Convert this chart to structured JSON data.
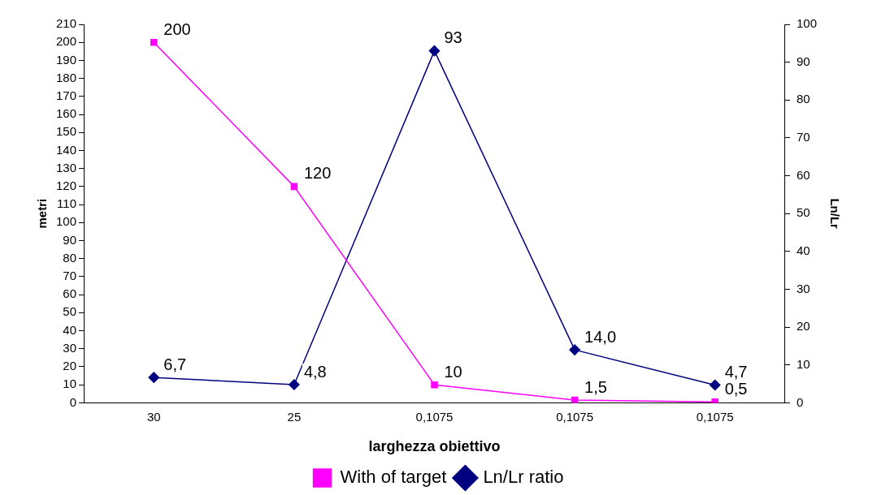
{
  "chart_data": {
    "type": "line",
    "xlabel": "larghezza obiettivo",
    "ylabel": "metri",
    "y2label": "Ln/Lr",
    "categories": [
      "30",
      "25",
      "0,1075",
      "0,1075",
      "0,1075"
    ],
    "series": [
      {
        "name": "With of target",
        "color": "#ff00ff",
        "marker": "square",
        "values": [
          200,
          120,
          10,
          1.5,
          0.5
        ],
        "value_labels": [
          "200",
          "120",
          "10",
          "1,5",
          "0,5"
        ]
      },
      {
        "name": "Ln/Lr ratio",
        "color": "#000080",
        "marker": "diamond",
        "axis": "y2",
        "values": [
          6.7,
          4.8,
          93,
          14.0,
          4.7
        ],
        "value_labels": [
          "6,7",
          "4,8",
          "93",
          "14,0",
          "4,7"
        ]
      }
    ],
    "ylim": [
      0,
      210
    ],
    "yticks": [
      0,
      10,
      20,
      30,
      40,
      50,
      60,
      70,
      80,
      90,
      100,
      110,
      120,
      130,
      140,
      150,
      160,
      170,
      180,
      190,
      200,
      210
    ],
    "y2lim": [
      0,
      100
    ],
    "y2ticks": [
      0,
      10,
      20,
      30,
      40,
      50,
      60,
      70,
      80,
      90,
      100
    ],
    "legend": "bottom",
    "grid": false
  }
}
